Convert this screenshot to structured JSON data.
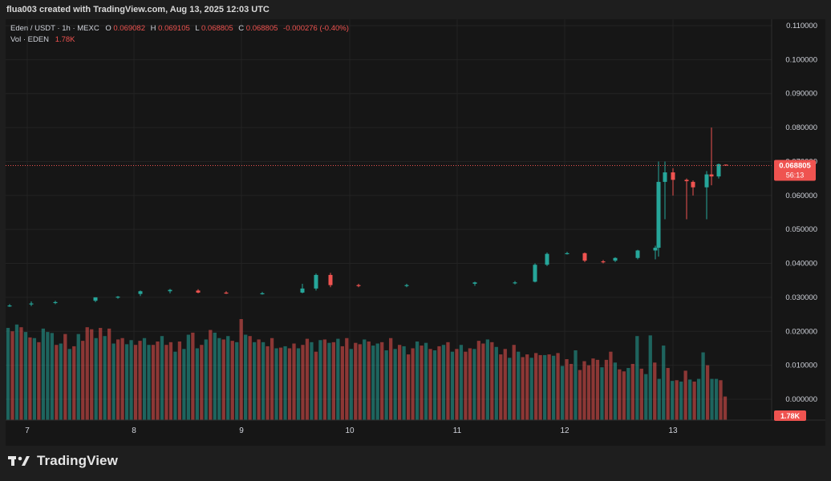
{
  "header": {
    "created_line": "flua003 created with TradingView.com, Aug 13, 2025 12:03 UTC"
  },
  "legend": {
    "symbol": "Eden / USDT · 1h · MEXC",
    "o_label": "O",
    "o_value": "0.069082",
    "h_label": "H",
    "h_value": "0.069105",
    "l_label": "L",
    "l_value": "0.068805",
    "c_label": "C",
    "c_value": "0.068805",
    "change": "-0.000276 (-0.40%)",
    "vol_label": "Vol · EDEN",
    "vol_value": "1.78K"
  },
  "footer": {
    "brand": "TradingView",
    "logo": "tradingview-logo-icon"
  },
  "colors": {
    "up": "#26a69a",
    "down": "#ef5350",
    "background": "#161616",
    "text": "#d1d4dc",
    "grid": "#232323"
  },
  "chart_data": {
    "type": "candlestick",
    "title": "Eden / USDT · 1h · MEXC",
    "price_axis": {
      "ticks": [
        "0.110000",
        "0.100000",
        "0.090000",
        "0.080000",
        "0.070000",
        "0.060000",
        "0.050000",
        "0.040000",
        "0.030000",
        "0.020000",
        "0.010000",
        "0.000000"
      ],
      "ylim": [
        0.0,
        0.11
      ],
      "position": "right"
    },
    "time_axis": {
      "ticks": [
        "7",
        "8",
        "9",
        "10",
        "11",
        "12",
        "13"
      ]
    },
    "last_price": {
      "value": 0.068805,
      "label": "0.068805",
      "countdown": "56:13"
    },
    "volume_label": "1.78K",
    "grid": true,
    "candles": [
      {
        "day": 7,
        "o": 0.0276,
        "h": 0.028,
        "l": 0.0272,
        "c": 0.0276
      },
      {
        "day": 7,
        "o": 0.028,
        "h": 0.0288,
        "l": 0.0274,
        "c": 0.0282
      },
      {
        "day": 7,
        "o": 0.0284,
        "h": 0.029,
        "l": 0.028,
        "c": 0.0286
      },
      {
        "day": 8,
        "o": 0.029,
        "h": 0.03,
        "l": 0.0286,
        "c": 0.03
      },
      {
        "day": 8,
        "o": 0.03,
        "h": 0.0304,
        "l": 0.0296,
        "c": 0.0302
      },
      {
        "day": 8,
        "o": 0.031,
        "h": 0.032,
        "l": 0.0304,
        "c": 0.0318
      },
      {
        "day": 8,
        "o": 0.0318,
        "h": 0.0325,
        "l": 0.0312,
        "c": 0.0322
      },
      {
        "day": 9,
        "o": 0.032,
        "h": 0.0324,
        "l": 0.0312,
        "c": 0.0314
      },
      {
        "day": 9,
        "o": 0.0314,
        "h": 0.0318,
        "l": 0.031,
        "c": 0.0312
      },
      {
        "day": 9,
        "o": 0.0312,
        "h": 0.0316,
        "l": 0.0308,
        "c": 0.0312
      },
      {
        "day": 10,
        "o": 0.0314,
        "h": 0.034,
        "l": 0.0312,
        "c": 0.0326
      },
      {
        "day": 10,
        "o": 0.0326,
        "h": 0.037,
        "l": 0.032,
        "c": 0.0366
      },
      {
        "day": 10,
        "o": 0.0366,
        "h": 0.0372,
        "l": 0.033,
        "c": 0.0336
      },
      {
        "day": 10,
        "o": 0.0336,
        "h": 0.034,
        "l": 0.033,
        "c": 0.0334
      },
      {
        "day": 11,
        "o": 0.0334,
        "h": 0.034,
        "l": 0.033,
        "c": 0.0336
      },
      {
        "day": 11,
        "o": 0.034,
        "h": 0.0346,
        "l": 0.0334,
        "c": 0.0344
      },
      {
        "day": 11,
        "o": 0.0344,
        "h": 0.0348,
        "l": 0.0338,
        "c": 0.0344
      },
      {
        "day": 11,
        "o": 0.0346,
        "h": 0.04,
        "l": 0.0344,
        "c": 0.0396
      },
      {
        "day": 12,
        "o": 0.0396,
        "h": 0.0432,
        "l": 0.0392,
        "c": 0.0428
      },
      {
        "day": 12,
        "o": 0.043,
        "h": 0.0434,
        "l": 0.0426,
        "c": 0.043
      },
      {
        "day": 12,
        "o": 0.043,
        "h": 0.0432,
        "l": 0.0404,
        "c": 0.0408
      },
      {
        "day": 12,
        "o": 0.0406,
        "h": 0.041,
        "l": 0.04,
        "c": 0.0404
      },
      {
        "day": 12,
        "o": 0.0408,
        "h": 0.0418,
        "l": 0.0404,
        "c": 0.0416
      },
      {
        "day": 13,
        "o": 0.0416,
        "h": 0.044,
        "l": 0.0412,
        "c": 0.0438
      },
      {
        "day": 13,
        "o": 0.0438,
        "h": 0.0452,
        "l": 0.0412,
        "c": 0.0446
      },
      {
        "day": 13,
        "o": 0.0446,
        "h": 0.07,
        "l": 0.042,
        "c": 0.064
      },
      {
        "day": 13,
        "o": 0.064,
        "h": 0.07,
        "l": 0.053,
        "c": 0.0668
      },
      {
        "day": 13,
        "o": 0.0668,
        "h": 0.068,
        "l": 0.06,
        "c": 0.0646
      },
      {
        "day": 13,
        "o": 0.0646,
        "h": 0.065,
        "l": 0.053,
        "c": 0.0642
      },
      {
        "day": 13,
        "o": 0.064,
        "h": 0.0644,
        "l": 0.06,
        "c": 0.0624
      },
      {
        "day": 13,
        "o": 0.0624,
        "h": 0.0672,
        "l": 0.053,
        "c": 0.0662
      },
      {
        "day": 13,
        "o": 0.0662,
        "h": 0.08,
        "l": 0.063,
        "c": 0.0656
      },
      {
        "day": 13,
        "o": 0.0656,
        "h": 0.0694,
        "l": 0.065,
        "c": 0.0692
      },
      {
        "day": 13,
        "o": 0.069082,
        "h": 0.069105,
        "l": 0.068805,
        "c": 0.068805
      }
    ],
    "volumes": [
      {
        "v": 0.021,
        "up": true
      },
      {
        "v": 0.02,
        "up": false
      },
      {
        "v": 0.022,
        "up": true
      },
      {
        "v": 0.0212,
        "up": false
      },
      {
        "v": 0.0198,
        "up": true
      },
      {
        "v": 0.0182,
        "up": false
      },
      {
        "v": 0.018,
        "up": true
      },
      {
        "v": 0.0168,
        "up": false
      },
      {
        "v": 0.0208,
        "up": true
      },
      {
        "v": 0.0198,
        "up": true
      },
      {
        "v": 0.0195,
        "up": true
      },
      {
        "v": 0.016,
        "up": false
      },
      {
        "v": 0.0164,
        "up": true
      },
      {
        "v": 0.0192,
        "up": false
      },
      {
        "v": 0.0148,
        "up": true
      },
      {
        "v": 0.0156,
        "up": false
      },
      {
        "v": 0.0192,
        "up": true
      },
      {
        "v": 0.0172,
        "up": false
      },
      {
        "v": 0.0212,
        "up": false
      },
      {
        "v": 0.0206,
        "up": false
      },
      {
        "v": 0.018,
        "up": true
      },
      {
        "v": 0.021,
        "up": false
      },
      {
        "v": 0.0186,
        "up": true
      },
      {
        "v": 0.0208,
        "up": false
      },
      {
        "v": 0.0164,
        "up": true
      },
      {
        "v": 0.0176,
        "up": false
      },
      {
        "v": 0.018,
        "up": false
      },
      {
        "v": 0.0162,
        "up": true
      },
      {
        "v": 0.0174,
        "up": true
      },
      {
        "v": 0.016,
        "up": false
      },
      {
        "v": 0.0172,
        "up": false
      },
      {
        "v": 0.018,
        "up": true
      },
      {
        "v": 0.016,
        "up": true
      },
      {
        "v": 0.016,
        "up": false
      },
      {
        "v": 0.017,
        "up": false
      },
      {
        "v": 0.0186,
        "up": true
      },
      {
        "v": 0.016,
        "up": false
      },
      {
        "v": 0.0168,
        "up": false
      },
      {
        "v": 0.014,
        "up": true
      },
      {
        "v": 0.017,
        "up": false
      },
      {
        "v": 0.0148,
        "up": true
      },
      {
        "v": 0.019,
        "up": true
      },
      {
        "v": 0.0196,
        "up": false
      },
      {
        "v": 0.015,
        "up": true
      },
      {
        "v": 0.016,
        "up": false
      },
      {
        "v": 0.0176,
        "up": true
      },
      {
        "v": 0.0204,
        "up": false
      },
      {
        "v": 0.0196,
        "up": true
      },
      {
        "v": 0.018,
        "up": true
      },
      {
        "v": 0.0176,
        "up": false
      },
      {
        "v": 0.0186,
        "up": true
      },
      {
        "v": 0.0172,
        "up": false
      },
      {
        "v": 0.0168,
        "up": true
      },
      {
        "v": 0.0236,
        "up": false
      },
      {
        "v": 0.019,
        "up": true
      },
      {
        "v": 0.0186,
        "up": false
      },
      {
        "v": 0.0168,
        "up": true
      },
      {
        "v": 0.0176,
        "up": false
      },
      {
        "v": 0.0168,
        "up": true
      },
      {
        "v": 0.0156,
        "up": false
      },
      {
        "v": 0.018,
        "up": false
      },
      {
        "v": 0.015,
        "up": true
      },
      {
        "v": 0.0152,
        "up": false
      },
      {
        "v": 0.0156,
        "up": true
      },
      {
        "v": 0.015,
        "up": false
      },
      {
        "v": 0.0164,
        "up": false
      },
      {
        "v": 0.015,
        "up": true
      },
      {
        "v": 0.016,
        "up": false
      },
      {
        "v": 0.0178,
        "up": false
      },
      {
        "v": 0.0168,
        "up": true
      },
      {
        "v": 0.014,
        "up": false
      },
      {
        "v": 0.0174,
        "up": true
      },
      {
        "v": 0.0176,
        "up": false
      },
      {
        "v": 0.0166,
        "up": true
      },
      {
        "v": 0.0168,
        "up": false
      },
      {
        "v": 0.0178,
        "up": true
      },
      {
        "v": 0.0156,
        "up": false
      },
      {
        "v": 0.018,
        "up": false
      },
      {
        "v": 0.0148,
        "up": true
      },
      {
        "v": 0.0166,
        "up": false
      },
      {
        "v": 0.0162,
        "up": false
      },
      {
        "v": 0.0176,
        "up": true
      },
      {
        "v": 0.017,
        "up": false
      },
      {
        "v": 0.0158,
        "up": true
      },
      {
        "v": 0.0164,
        "up": true
      },
      {
        "v": 0.0168,
        "up": false
      },
      {
        "v": 0.0144,
        "up": true
      },
      {
        "v": 0.018,
        "up": false
      },
      {
        "v": 0.0148,
        "up": true
      },
      {
        "v": 0.016,
        "up": false
      },
      {
        "v": 0.0156,
        "up": true
      },
      {
        "v": 0.0132,
        "up": false
      },
      {
        "v": 0.015,
        "up": false
      },
      {
        "v": 0.017,
        "up": true
      },
      {
        "v": 0.0158,
        "up": false
      },
      {
        "v": 0.0166,
        "up": true
      },
      {
        "v": 0.0148,
        "up": false
      },
      {
        "v": 0.0144,
        "up": true
      },
      {
        "v": 0.0156,
        "up": false
      },
      {
        "v": 0.016,
        "up": true
      },
      {
        "v": 0.0168,
        "up": false
      },
      {
        "v": 0.014,
        "up": true
      },
      {
        "v": 0.0148,
        "up": false
      },
      {
        "v": 0.016,
        "up": true
      },
      {
        "v": 0.014,
        "up": false
      },
      {
        "v": 0.015,
        "up": false
      },
      {
        "v": 0.0148,
        "up": true
      },
      {
        "v": 0.0172,
        "up": false
      },
      {
        "v": 0.0164,
        "up": false
      },
      {
        "v": 0.0176,
        "up": true
      },
      {
        "v": 0.0168,
        "up": false
      },
      {
        "v": 0.0154,
        "up": true
      },
      {
        "v": 0.0132,
        "up": false
      },
      {
        "v": 0.0148,
        "up": false
      },
      {
        "v": 0.0122,
        "up": true
      },
      {
        "v": 0.016,
        "up": false
      },
      {
        "v": 0.014,
        "up": true
      },
      {
        "v": 0.0124,
        "up": false
      },
      {
        "v": 0.0132,
        "up": false
      },
      {
        "v": 0.0122,
        "up": true
      },
      {
        "v": 0.0136,
        "up": false
      },
      {
        "v": 0.013,
        "up": false
      },
      {
        "v": 0.013,
        "up": true
      },
      {
        "v": 0.0132,
        "up": false
      },
      {
        "v": 0.0128,
        "up": true
      },
      {
        "v": 0.0136,
        "up": false
      },
      {
        "v": 0.0098,
        "up": true
      },
      {
        "v": 0.0118,
        "up": false
      },
      {
        "v": 0.0104,
        "up": false
      },
      {
        "v": 0.0144,
        "up": true
      },
      {
        "v": 0.0086,
        "up": false
      },
      {
        "v": 0.0112,
        "up": false
      },
      {
        "v": 0.01,
        "up": false
      },
      {
        "v": 0.012,
        "up": false
      },
      {
        "v": 0.0116,
        "up": false
      },
      {
        "v": 0.0094,
        "up": true
      },
      {
        "v": 0.0116,
        "up": false
      },
      {
        "v": 0.014,
        "up": false
      },
      {
        "v": 0.0108,
        "up": true
      },
      {
        "v": 0.0088,
        "up": false
      },
      {
        "v": 0.0082,
        "up": false
      },
      {
        "v": 0.0092,
        "up": true
      },
      {
        "v": 0.0104,
        "up": false
      },
      {
        "v": 0.0186,
        "up": true
      },
      {
        "v": 0.009,
        "up": false
      },
      {
        "v": 0.0074,
        "up": true
      },
      {
        "v": 0.0188,
        "up": true
      },
      {
        "v": 0.0108,
        "up": false
      },
      {
        "v": 0.006,
        "up": true
      },
      {
        "v": 0.0158,
        "up": true
      },
      {
        "v": 0.0092,
        "up": false
      },
      {
        "v": 0.0054,
        "up": true
      },
      {
        "v": 0.0056,
        "up": false
      },
      {
        "v": 0.0052,
        "up": true
      },
      {
        "v": 0.0084,
        "up": false
      },
      {
        "v": 0.0058,
        "up": true
      },
      {
        "v": 0.0052,
        "up": false
      },
      {
        "v": 0.006,
        "up": true
      },
      {
        "v": 0.0138,
        "up": true
      },
      {
        "v": 0.01,
        "up": false
      },
      {
        "v": 0.006,
        "up": true
      },
      {
        "v": 0.006,
        "up": true
      },
      {
        "v": 0.0056,
        "up": false
      },
      {
        "v": 0.0008,
        "up": false
      }
    ]
  }
}
